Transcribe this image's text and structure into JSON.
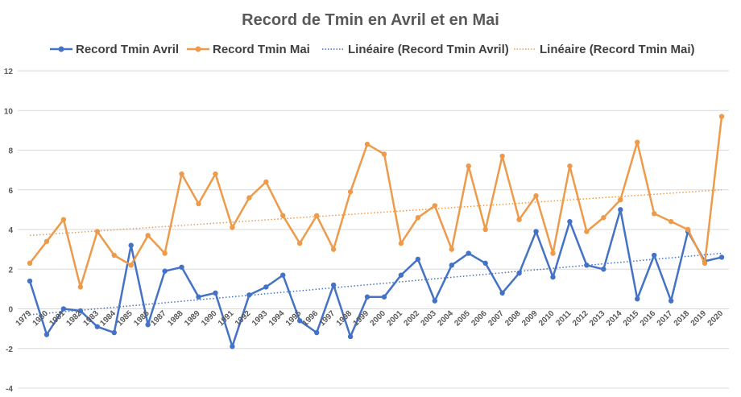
{
  "chart_data": {
    "type": "line",
    "title": "Record de Tmin en Avril et en Mai",
    "xlabel": "",
    "ylabel": "",
    "ylim": [
      -4,
      12
    ],
    "yticks": [
      -4,
      -2,
      0,
      2,
      4,
      6,
      8,
      10,
      12
    ],
    "grid": true,
    "legend_position": "top",
    "categories": [
      "1979",
      "1980",
      "1981",
      "1982",
      "1983",
      "1984",
      "1985",
      "1986",
      "1987",
      "1988",
      "1989",
      "1990",
      "1991",
      "1992",
      "1993",
      "1994",
      "1995",
      "1996",
      "1997",
      "1998",
      "1999",
      "2000",
      "2001",
      "2002",
      "2003",
      "2004",
      "2005",
      "2006",
      "2007",
      "2008",
      "2009",
      "2010",
      "2011",
      "2012",
      "2013",
      "2014",
      "2015",
      "2016",
      "2017",
      "2018",
      "2019",
      "2020"
    ],
    "series": [
      {
        "name": "Record Tmin Avril",
        "color": "#4472c4",
        "values": [
          1.4,
          -1.3,
          0.0,
          -0.1,
          -0.9,
          -1.2,
          3.2,
          -0.8,
          1.9,
          2.1,
          0.6,
          0.8,
          -1.9,
          0.7,
          1.1,
          1.7,
          -0.6,
          -1.2,
          1.2,
          -1.4,
          0.6,
          0.6,
          1.7,
          2.5,
          0.4,
          2.2,
          2.8,
          2.3,
          0.8,
          1.8,
          3.9,
          1.6,
          4.4,
          2.2,
          2.0,
          5.0,
          0.5,
          2.7,
          0.4,
          3.9,
          2.4,
          2.6
        ]
      },
      {
        "name": "Record Tmin Mai",
        "color": "#ed9b4a",
        "values": [
          2.3,
          3.4,
          4.5,
          1.1,
          3.9,
          2.7,
          2.2,
          3.7,
          2.8,
          6.8,
          5.3,
          6.8,
          4.1,
          5.6,
          6.4,
          4.7,
          3.3,
          4.7,
          3.0,
          5.9,
          8.3,
          7.8,
          3.3,
          4.6,
          5.2,
          3.0,
          7.2,
          4.0,
          7.7,
          4.5,
          5.7,
          2.8,
          7.2,
          3.9,
          4.6,
          5.5,
          8.4,
          4.8,
          4.4,
          4.0,
          2.3,
          9.7
        ]
      }
    ],
    "trendlines": [
      {
        "name": "Linéaire (Record Tmin Avril)",
        "color": "#4472c4",
        "start": -0.3,
        "end": 2.8
      },
      {
        "name": "Linéaire (Record Tmin Mai)",
        "color": "#ed9b4a",
        "start": 3.7,
        "end": 6.0
      }
    ]
  }
}
